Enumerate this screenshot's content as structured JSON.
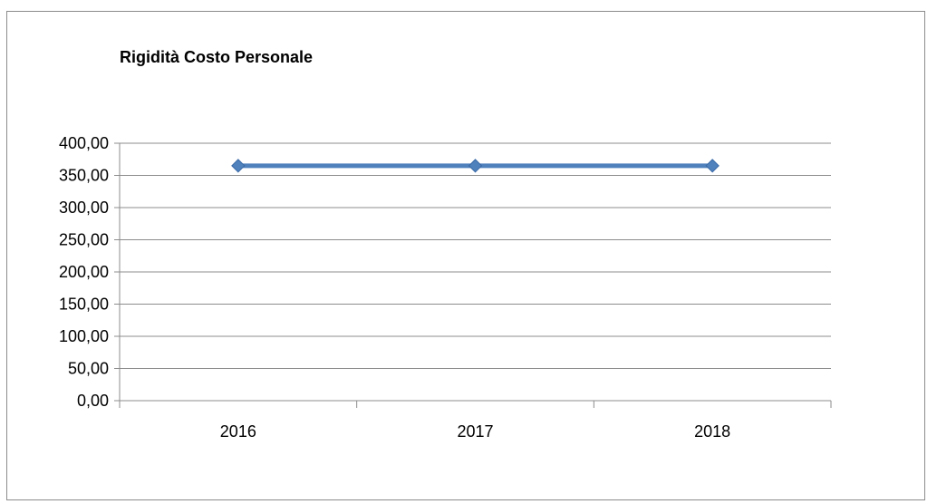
{
  "chart_data": {
    "type": "line",
    "title": "Rigidità Costo Personale",
    "xlabel": "",
    "ylabel": "",
    "categories": [
      "2016",
      "2017",
      "2018"
    ],
    "series": [
      {
        "values": [
          365,
          365,
          365
        ],
        "color": "#4f81bd"
      }
    ],
    "ylim": [
      0,
      400
    ],
    "yticks": [
      "0,00",
      "50,00",
      "100,00",
      "150,00",
      "200,00",
      "250,00",
      "300,00",
      "350,00",
      "400,00"
    ],
    "grid": true,
    "legend": "none",
    "colors": {
      "gridline": "#8c8c8c",
      "axis": "#8c8c8c",
      "frame": "#8c8c8c"
    }
  }
}
